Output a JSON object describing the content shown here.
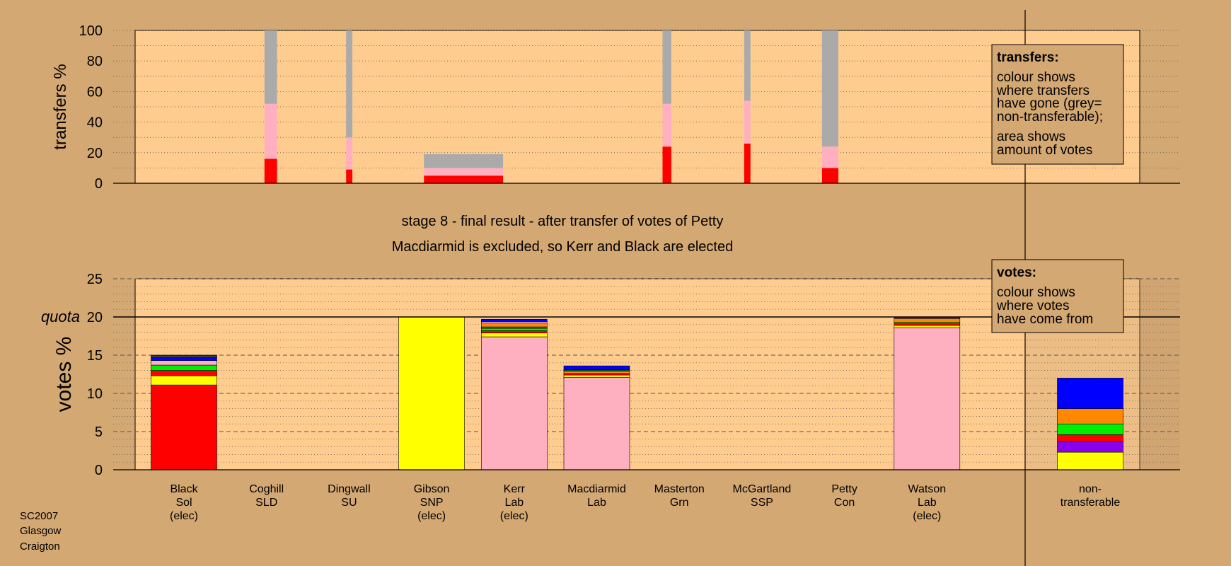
{
  "header": {
    "stage": "stage 8 - final result - after transfer of votes of Petty",
    "result": "Macdiarmid is excluded, so Kerr and Black are elected"
  },
  "footer": {
    "lines": [
      "SC2007",
      "Glasgow",
      "Craigton"
    ]
  },
  "colors": {
    "background": "#d4a872",
    "panel": "#ffcc8f",
    "panel_dark": "#c8a070",
    "grey": "#aaaaaa",
    "Lab": "#ffb0c0",
    "Sol": "#ff0000",
    "SNP": "#ffff00",
    "SSP": "#8800ee",
    "Grn": "#00ee00",
    "SLD": "#ff8800",
    "Con": "#0000ff",
    "SU": "#884400",
    "other": "#006400"
  },
  "legends": {
    "transfers": {
      "title": "transfers:",
      "lines": [
        "colour shows",
        "where transfers",
        "have gone (grey=",
        "non-transferable);"
      ],
      "lines2": [
        "area shows",
        "amount of votes"
      ]
    },
    "votes": {
      "title": "votes:",
      "lines": [
        "colour shows",
        "where votes",
        "have come from"
      ]
    }
  },
  "chart_data": [
    {
      "type": "bar",
      "name": "transfers",
      "ylabel": "transfers %",
      "ylim": [
        0,
        100
      ],
      "yticks": [
        0,
        20,
        40,
        60,
        80,
        100
      ],
      "bars": [
        {
          "x": 10.3,
          "width": 1.0,
          "segments": [
            {
              "party": "Sol",
              "value": 16
            },
            {
              "party": "Lab",
              "value": 36
            },
            {
              "party": "grey",
              "value": 48
            }
          ]
        },
        {
          "x": 16.8,
          "width": 0.5,
          "segments": [
            {
              "party": "Sol",
              "value": 9
            },
            {
              "party": "Lab",
              "value": 21
            },
            {
              "party": "grey",
              "value": 70
            }
          ]
        },
        {
          "x": 23.0,
          "width": 6.3,
          "segments": [
            {
              "party": "Sol",
              "value": 5
            },
            {
              "party": "Lab",
              "value": 5
            },
            {
              "party": "grey",
              "value": 9
            }
          ]
        },
        {
          "x": 42.0,
          "width": 0.7,
          "segments": [
            {
              "party": "Sol",
              "value": 24
            },
            {
              "party": "Lab",
              "value": 28
            },
            {
              "party": "grey",
              "value": 48
            }
          ]
        },
        {
          "x": 48.5,
          "width": 0.5,
          "segments": [
            {
              "party": "Sol",
              "value": 26
            },
            {
              "party": "Lab",
              "value": 28
            },
            {
              "party": "grey",
              "value": 46
            }
          ]
        },
        {
          "x": 54.7,
          "width": 1.3,
          "segments": [
            {
              "party": "Sol",
              "value": 10
            },
            {
              "party": "Lab",
              "value": 14
            },
            {
              "party": "grey",
              "value": 76
            }
          ]
        }
      ]
    },
    {
      "type": "bar",
      "name": "votes",
      "ylabel": "votes %",
      "ylim": [
        0,
        25
      ],
      "yticks": [
        0,
        5,
        10,
        15,
        20,
        25
      ],
      "quota": 20,
      "quota_label": "quota",
      "categories": [
        {
          "lines": [
            "Black",
            "Sol",
            "(elec)"
          ],
          "segments": [
            {
              "party": "Sol",
              "value": 11.1
            },
            {
              "party": "SNP",
              "value": 1.2
            },
            {
              "party": "Sol",
              "value": 0.7
            },
            {
              "party": "Grn",
              "value": 0.7
            },
            {
              "party": "Lab",
              "value": 0.6
            },
            {
              "party": "Con",
              "value": 0.5
            },
            {
              "party": "SNP",
              "value": 0.1
            },
            {
              "party": "other",
              "value": 0.1
            }
          ]
        },
        {
          "lines": [
            "Coghill",
            "SLD"
          ],
          "segments": []
        },
        {
          "lines": [
            "Dingwall",
            "SU"
          ],
          "segments": []
        },
        {
          "lines": [
            "Gibson",
            "SNP",
            "(elec)"
          ],
          "segments": [
            {
              "party": "SNP",
              "value": 20.0
            }
          ]
        },
        {
          "lines": [
            "Kerr",
            "Lab",
            "(elec)"
          ],
          "segments": [
            {
              "party": "Lab",
              "value": 17.4
            },
            {
              "party": "SNP",
              "value": 0.5
            },
            {
              "party": "Sol",
              "value": 0.3
            },
            {
              "party": "Grn",
              "value": 0.3
            },
            {
              "party": "SU",
              "value": 0.2
            },
            {
              "party": "SLD",
              "value": 0.5
            },
            {
              "party": "Lab",
              "value": 0.2
            },
            {
              "party": "Con",
              "value": 0.3
            }
          ]
        },
        {
          "lines": [
            "Macdiarmid",
            "Lab"
          ],
          "segments": [
            {
              "party": "Lab",
              "value": 12.1
            },
            {
              "party": "SNP",
              "value": 0.3
            },
            {
              "party": "Sol",
              "value": 0.2
            },
            {
              "party": "SLD",
              "value": 0.3
            },
            {
              "party": "other",
              "value": 0.2
            },
            {
              "party": "Con",
              "value": 0.5
            }
          ]
        },
        {
          "lines": [
            "Masterton",
            "Grn"
          ],
          "segments": []
        },
        {
          "lines": [
            "McGartland",
            "SSP"
          ],
          "segments": []
        },
        {
          "lines": [
            "Petty",
            "Con"
          ],
          "segments": []
        },
        {
          "lines": [
            "Watson",
            "Lab",
            "(elec)"
          ],
          "segments": [
            {
              "party": "Lab",
              "value": 18.6
            },
            {
              "party": "SNP",
              "value": 0.3
            },
            {
              "party": "Sol",
              "value": 0.2
            },
            {
              "party": "Grn",
              "value": 0.2
            },
            {
              "party": "SLD",
              "value": 0.5
            },
            {
              "party": "Con",
              "value": 0.1
            }
          ]
        }
      ],
      "nontransferable": {
        "lines": [
          "non-",
          "transferable"
        ],
        "segments": [
          {
            "party": "SNP",
            "value": 2.3
          },
          {
            "party": "SSP",
            "value": 1.4
          },
          {
            "party": "Sol",
            "value": 0.9
          },
          {
            "party": "Grn",
            "value": 1.4
          },
          {
            "party": "SLD",
            "value": 2.0
          },
          {
            "party": "Con",
            "value": 4.0
          }
        ]
      }
    }
  ]
}
